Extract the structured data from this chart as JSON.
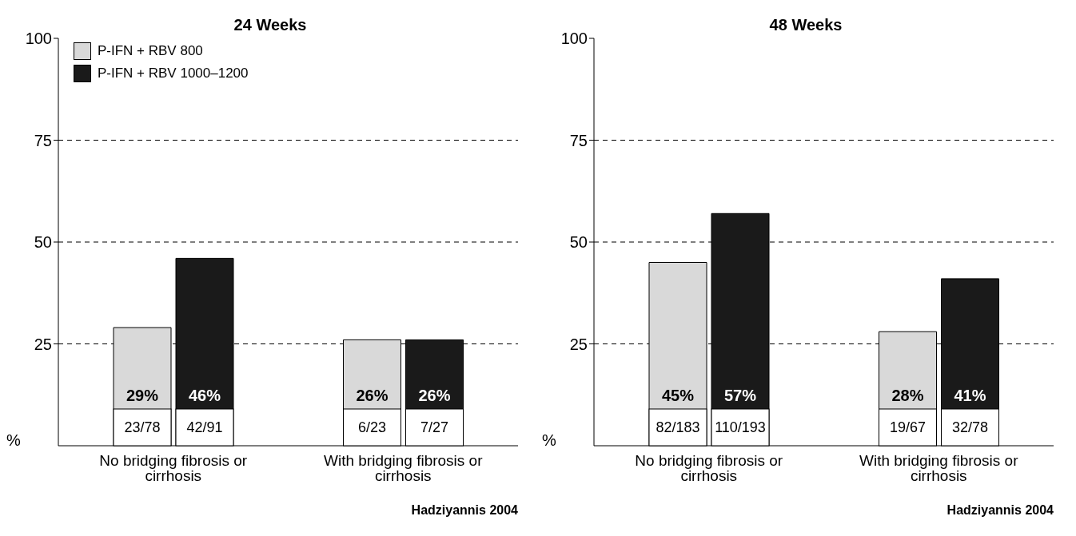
{
  "chart_data": [
    {
      "type": "bar",
      "title": "24 Weeks",
      "ylabel": "%",
      "categories": [
        "No bridging fibrosis or cirrhosis",
        "With bridging fibrosis or cirrhosis"
      ],
      "series": [
        {
          "name": "P-IFN + RBV 800",
          "color": "#d9d9d9",
          "values": [
            29,
            26
          ],
          "value_labels": [
            "29%",
            "26%"
          ]
        },
        {
          "name": "P-IFN + RBV 1000–1200",
          "color": "#1a1a1a",
          "values": [
            46,
            26
          ],
          "value_labels": [
            "46%",
            "26%"
          ]
        }
      ],
      "ylim": [
        0,
        100
      ],
      "yticks": [
        25,
        50,
        75,
        100
      ],
      "grid": "y",
      "legend": "top left",
      "annotations": [
        "23/78",
        "42/91",
        "6/23",
        "7/27",
        "Hadziyannis 2004"
      ]
    },
    {
      "type": "bar",
      "title": "48 Weeks",
      "ylabel": "%",
      "categories": [
        "No bridging fibrosis or cirrhosis",
        "With bridging fibrosis or cirrhosis"
      ],
      "series": [
        {
          "color": "#d9d9d9",
          "values": [
            45,
            28
          ],
          "value_labels": [
            "45%",
            "28%"
          ]
        },
        {
          "color": "#1a1a1a",
          "values": [
            57,
            41
          ],
          "value_labels": [
            "57%",
            "41%"
          ]
        }
      ],
      "ylim": [
        0,
        100
      ],
      "yticks": [
        25,
        50,
        75,
        100
      ],
      "grid": "y",
      "annotations": [
        "82/183",
        "110/193",
        "19/67",
        "32/78",
        "Hadziyannis 2004"
      ]
    }
  ]
}
